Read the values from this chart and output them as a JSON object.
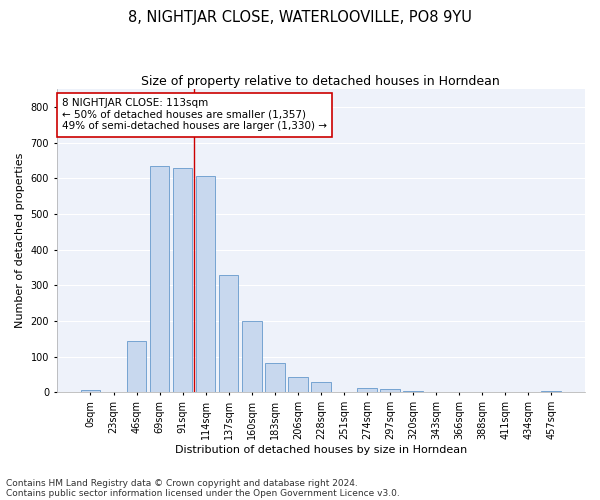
{
  "title": "8, NIGHTJAR CLOSE, WATERLOOVILLE, PO8 9YU",
  "subtitle": "Size of property relative to detached houses in Horndean",
  "xlabel": "Distribution of detached houses by size in Horndean",
  "ylabel": "Number of detached properties",
  "bar_color": "#c8d8ee",
  "bar_edgecolor": "#6699cc",
  "background_color": "#eef2fa",
  "grid_color": "#ffffff",
  "categories": [
    "0sqm",
    "23sqm",
    "46sqm",
    "69sqm",
    "91sqm",
    "114sqm",
    "137sqm",
    "160sqm",
    "183sqm",
    "206sqm",
    "228sqm",
    "251sqm",
    "274sqm",
    "297sqm",
    "320sqm",
    "343sqm",
    "366sqm",
    "388sqm",
    "411sqm",
    "434sqm",
    "457sqm"
  ],
  "values": [
    7,
    0,
    143,
    635,
    630,
    607,
    330,
    200,
    82,
    42,
    28,
    0,
    12,
    10,
    5,
    0,
    0,
    0,
    0,
    0,
    5
  ],
  "ylim": [
    0,
    850
  ],
  "yticks": [
    0,
    100,
    200,
    300,
    400,
    500,
    600,
    700,
    800
  ],
  "vline_x": 4.5,
  "annotation_text": "8 NIGHTJAR CLOSE: 113sqm\n← 50% of detached houses are smaller (1,357)\n49% of semi-detached houses are larger (1,330) →",
  "annotation_box_color": "#ffffff",
  "annotation_edge_color": "#cc0000",
  "vline_color": "#cc0000",
  "footnote1": "Contains HM Land Registry data © Crown copyright and database right 2024.",
  "footnote2": "Contains public sector information licensed under the Open Government Licence v3.0.",
  "title_fontsize": 10.5,
  "subtitle_fontsize": 9,
  "axis_label_fontsize": 8,
  "tick_fontsize": 7,
  "annotation_fontsize": 7.5,
  "footnote_fontsize": 6.5
}
